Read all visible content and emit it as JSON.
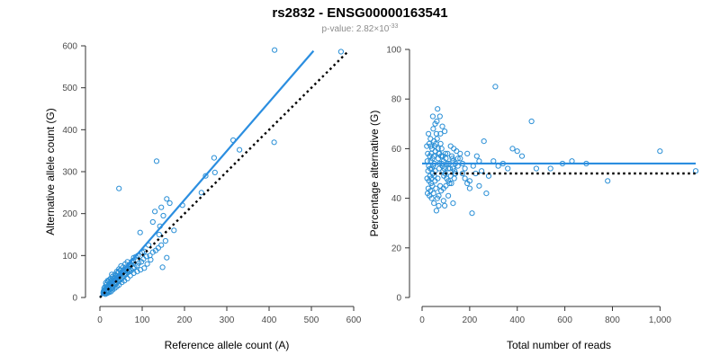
{
  "title": "rs2832 - ENSG00000163541",
  "subtitle": {
    "prefix": "p-value: 2.82×10",
    "exponent": "-33"
  },
  "colors": {
    "points": "#2a8fd6",
    "fit_line": "#2b8ee0",
    "reference_line": "#000000",
    "axis": "#333333",
    "tick_text": "#4d4d4d",
    "title": "#000000",
    "subtitle": "#8c8c8c"
  },
  "chart_data": [
    {
      "type": "scatter",
      "xlabel": "Reference allele count (A)",
      "ylabel": "Alternative allele count (G)",
      "xlim": [
        0,
        600
      ],
      "ylim": [
        0,
        600
      ],
      "xticks": [
        0,
        100,
        200,
        300,
        400,
        500,
        600
      ],
      "yticks": [
        0,
        100,
        200,
        300,
        400,
        500,
        600
      ],
      "grid": false,
      "lines": [
        {
          "role": "fit",
          "style": "solid",
          "points": [
            [
              0,
              0
            ],
            [
              505,
              588
            ]
          ]
        },
        {
          "role": "reference",
          "style": "dotted",
          "points": [
            [
              0,
              0
            ],
            [
              585,
              585
            ]
          ]
        }
      ],
      "points": [
        [
          413,
          590
        ],
        [
          570,
          586
        ],
        [
          412,
          370
        ],
        [
          134,
          325
        ],
        [
          315,
          375
        ],
        [
          330,
          352
        ],
        [
          45,
          260
        ],
        [
          158,
          235
        ],
        [
          165,
          225
        ],
        [
          270,
          333
        ],
        [
          272,
          298
        ],
        [
          250,
          290
        ],
        [
          240,
          250
        ],
        [
          145,
          215
        ],
        [
          130,
          205
        ],
        [
          150,
          195
        ],
        [
          125,
          180
        ],
        [
          175,
          160
        ],
        [
          195,
          220
        ],
        [
          142,
          170
        ],
        [
          140,
          150
        ],
        [
          95,
          155
        ],
        [
          155,
          135
        ],
        [
          115,
          125
        ],
        [
          105,
          110
        ],
        [
          100,
          108
        ],
        [
          90,
          100
        ],
        [
          85,
          97
        ],
        [
          80,
          95
        ],
        [
          78,
          88
        ],
        [
          75,
          85
        ],
        [
          72,
          80
        ],
        [
          70,
          78
        ],
        [
          68,
          74
        ],
        [
          65,
          70
        ],
        [
          62,
          68
        ],
        [
          60,
          66
        ],
        [
          58,
          62
        ],
        [
          55,
          60
        ],
        [
          52,
          58
        ],
        [
          50,
          56
        ],
        [
          48,
          54
        ],
        [
          46,
          52
        ],
        [
          44,
          50
        ],
        [
          42,
          48
        ],
        [
          40,
          46
        ],
        [
          38,
          44
        ],
        [
          36,
          42
        ],
        [
          34,
          40
        ],
        [
          32,
          38
        ],
        [
          30,
          36
        ],
        [
          28,
          34
        ],
        [
          26,
          32
        ],
        [
          24,
          30
        ],
        [
          22,
          28
        ],
        [
          20,
          26
        ],
        [
          18,
          24
        ],
        [
          16,
          22
        ],
        [
          14,
          20
        ],
        [
          12,
          18
        ],
        [
          10,
          16
        ],
        [
          9,
          14
        ],
        [
          8,
          12
        ],
        [
          12,
          10
        ],
        [
          15,
          12
        ],
        [
          18,
          14
        ],
        [
          20,
          17
        ],
        [
          22,
          15
        ],
        [
          25,
          20
        ],
        [
          28,
          22
        ],
        [
          30,
          25
        ],
        [
          32,
          28
        ],
        [
          35,
          30
        ],
        [
          38,
          33
        ],
        [
          40,
          35
        ],
        [
          43,
          38
        ],
        [
          45,
          40
        ],
        [
          48,
          42
        ],
        [
          50,
          45
        ],
        [
          53,
          47
        ],
        [
          55,
          50
        ],
        [
          58,
          52
        ],
        [
          60,
          55
        ],
        [
          63,
          57
        ],
        [
          66,
          60
        ],
        [
          70,
          62
        ],
        [
          74,
          64
        ],
        [
          78,
          70
        ],
        [
          82,
          72
        ],
        [
          88,
          76
        ],
        [
          92,
          82
        ],
        [
          98,
          85
        ],
        [
          103,
          92
        ],
        [
          110,
          98
        ],
        [
          120,
          90
        ],
        [
          118,
          100
        ],
        [
          148,
          72
        ],
        [
          158,
          95
        ],
        [
          35,
          55
        ],
        [
          40,
          62
        ],
        [
          45,
          68
        ],
        [
          55,
          72
        ],
        [
          60,
          80
        ],
        [
          65,
          85
        ],
        [
          30,
          50
        ],
        [
          25,
          45
        ],
        [
          20,
          38
        ],
        [
          15,
          30
        ],
        [
          12,
          25
        ],
        [
          10,
          22
        ],
        [
          14,
          35
        ],
        [
          18,
          40
        ],
        [
          22,
          42
        ],
        [
          28,
          55
        ],
        [
          50,
          75
        ],
        [
          42,
          58
        ],
        [
          36,
          48
        ],
        [
          33,
          44
        ],
        [
          27,
          38
        ],
        [
          23,
          33
        ],
        [
          19,
          28
        ],
        [
          16,
          25
        ],
        [
          13,
          20
        ],
        [
          11,
          17
        ],
        [
          9,
          15
        ],
        [
          8,
          10
        ],
        [
          13,
          8
        ],
        [
          17,
          10
        ],
        [
          21,
          12
        ],
        [
          26,
          14
        ],
        [
          30,
          18
        ],
        [
          35,
          22
        ],
        [
          40,
          26
        ],
        [
          45,
          30
        ],
        [
          52,
          36
        ],
        [
          58,
          40
        ],
        [
          65,
          45
        ],
        [
          72,
          52
        ],
        [
          80,
          58
        ],
        [
          88,
          62
        ],
        [
          96,
          66
        ],
        [
          105,
          70
        ],
        [
          112,
          80
        ],
        [
          125,
          108
        ],
        [
          132,
          112
        ],
        [
          138,
          118
        ],
        [
          145,
          125
        ],
        [
          48,
          65
        ],
        [
          56,
          64
        ],
        [
          62,
          72
        ],
        [
          68,
          65
        ],
        [
          74,
          78
        ],
        [
          44,
          62
        ],
        [
          38,
          52
        ],
        [
          32,
          45
        ],
        [
          26,
          40
        ]
      ]
    },
    {
      "type": "scatter",
      "xlabel": "Total number of reads",
      "ylabel": "Percentage alternative (G)",
      "xlim": [
        0,
        1150
      ],
      "ylim": [
        0,
        100
      ],
      "xticks": [
        0,
        200,
        400,
        600,
        800,
        1000
      ],
      "xtick_labels": [
        "0",
        "200",
        "400",
        "600",
        "800",
        "1,000"
      ],
      "yticks": [
        0,
        20,
        40,
        60,
        80,
        100
      ],
      "grid": false,
      "lines": [
        {
          "role": "fit",
          "style": "solid",
          "points": [
            [
              0,
              54
            ],
            [
              1150,
              54
            ]
          ]
        },
        {
          "role": "reference",
          "style": "dotted",
          "points": [
            [
              50,
              50
            ],
            [
              1150,
              50
            ]
          ]
        }
      ],
      "points": [
        [
          308,
          85
        ],
        [
          460,
          71
        ],
        [
          1000,
          59
        ],
        [
          1150,
          51
        ],
        [
          780,
          47
        ],
        [
          690,
          54
        ],
        [
          630,
          55
        ],
        [
          590,
          54
        ],
        [
          540,
          52
        ],
        [
          480,
          52
        ],
        [
          420,
          57
        ],
        [
          400,
          59
        ],
        [
          380,
          60
        ],
        [
          360,
          52
        ],
        [
          340,
          54
        ],
        [
          320,
          53
        ],
        [
          300,
          55
        ],
        [
          270,
          42
        ],
        [
          260,
          63
        ],
        [
          240,
          55
        ],
        [
          225,
          50
        ],
        [
          210,
          34
        ],
        [
          200,
          47
        ],
        [
          190,
          58
        ],
        [
          180,
          52
        ],
        [
          170,
          54
        ],
        [
          160,
          56
        ],
        [
          150,
          53
        ],
        [
          145,
          59
        ],
        [
          140,
          50
        ],
        [
          135,
          48
        ],
        [
          130,
          55
        ],
        [
          125,
          57
        ],
        [
          120,
          61
        ],
        [
          115,
          46
        ],
        [
          110,
          52
        ],
        [
          105,
          54
        ],
        [
          100,
          56
        ],
        [
          98,
          58
        ],
        [
          95,
          37
        ],
        [
          92,
          49
        ],
        [
          90,
          55
        ],
        [
          88,
          51
        ],
        [
          85,
          53
        ],
        [
          82,
          60
        ],
        [
          80,
          57
        ],
        [
          78,
          62
        ],
        [
          76,
          45
        ],
        [
          74,
          54
        ],
        [
          72,
          52
        ],
        [
          70,
          58
        ],
        [
          68,
          56
        ],
        [
          66,
          48
        ],
        [
          64,
          40
        ],
        [
          62,
          71
        ],
        [
          60,
          66
        ],
        [
          58,
          44
        ],
        [
          56,
          59
        ],
        [
          55,
          51
        ],
        [
          54,
          47
        ],
        [
          53,
          61
        ],
        [
          52,
          54
        ],
        [
          51,
          49
        ],
        [
          50,
          63
        ],
        [
          49,
          57
        ],
        [
          48,
          42
        ],
        [
          47,
          68
        ],
        [
          46,
          53
        ],
        [
          45,
          50
        ],
        [
          44,
          56
        ],
        [
          43,
          45
        ],
        [
          42,
          60
        ],
        [
          41,
          52
        ],
        [
          40,
          48
        ],
        [
          39,
          58
        ],
        [
          38,
          46
        ],
        [
          37,
          61
        ],
        [
          36,
          55
        ],
        [
          35,
          43
        ],
        [
          34,
          52
        ],
        [
          33,
          49
        ],
        [
          32,
          57
        ],
        [
          31,
          41
        ],
        [
          30,
          62
        ],
        [
          29,
          47
        ],
        [
          28,
          53
        ],
        [
          27,
          66
        ],
        [
          26,
          44
        ],
        [
          25,
          51
        ],
        [
          24,
          58
        ],
        [
          23,
          42
        ],
        [
          22,
          55
        ],
        [
          21,
          48
        ],
        [
          20,
          61
        ],
        [
          65,
          76
        ],
        [
          75,
          73
        ],
        [
          85,
          69
        ],
        [
          95,
          67
        ],
        [
          55,
          70
        ],
        [
          45,
          73
        ],
        [
          35,
          64
        ],
        [
          60,
          35
        ],
        [
          50,
          38
        ],
        [
          40,
          40
        ],
        [
          70,
          41
        ],
        [
          80,
          43
        ],
        [
          90,
          44
        ],
        [
          100,
          45
        ],
        [
          110,
          47
        ],
        [
          120,
          49
        ],
        [
          130,
          52
        ],
        [
          140,
          54
        ],
        [
          150,
          56
        ],
        [
          160,
          58
        ],
        [
          170,
          50
        ],
        [
          180,
          48
        ],
        [
          190,
          46
        ],
        [
          200,
          44
        ],
        [
          215,
          53
        ],
        [
          230,
          57
        ],
        [
          250,
          51
        ],
        [
          280,
          49
        ],
        [
          240,
          45
        ],
        [
          130,
          38
        ],
        [
          110,
          41
        ],
        [
          90,
          39
        ],
        [
          70,
          37
        ],
        [
          58,
          62
        ],
        [
          63,
          64
        ],
        [
          67,
          60
        ],
        [
          73,
          58
        ],
        [
          77,
          66
        ],
        [
          83,
          54
        ],
        [
          87,
          57
        ],
        [
          93,
          52
        ],
        [
          97,
          50
        ],
        [
          103,
          48
        ],
        [
          107,
          58
        ],
        [
          113,
          54
        ],
        [
          117,
          52
        ],
        [
          123,
          46
        ],
        [
          127,
          56
        ],
        [
          133,
          60
        ],
        [
          137,
          51
        ]
      ]
    }
  ]
}
